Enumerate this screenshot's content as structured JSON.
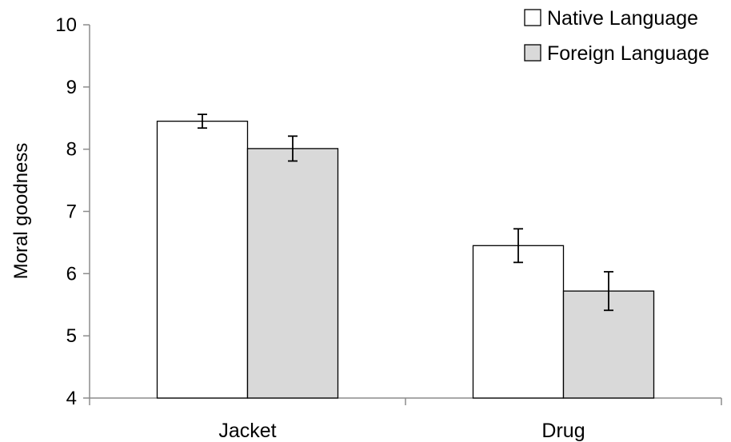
{
  "chart_data": {
    "type": "bar",
    "categories": [
      "Jacket",
      "Drug"
    ],
    "series": [
      {
        "name": "Native Language",
        "values": [
          8.45,
          6.45
        ],
        "error": [
          0.11,
          0.27
        ],
        "color": "#ffffff"
      },
      {
        "name": "Foreign Language",
        "values": [
          8.01,
          5.72
        ],
        "error": [
          0.2,
          0.31
        ],
        "color": "#d9d9d9"
      }
    ],
    "xlabel": "",
    "ylabel": "Moral goodness",
    "ylim": [
      4,
      10
    ],
    "yticks": [
      "4",
      "5",
      "6",
      "7",
      "8",
      "9",
      "10"
    ],
    "grid": false,
    "legend_position": "top-right"
  }
}
